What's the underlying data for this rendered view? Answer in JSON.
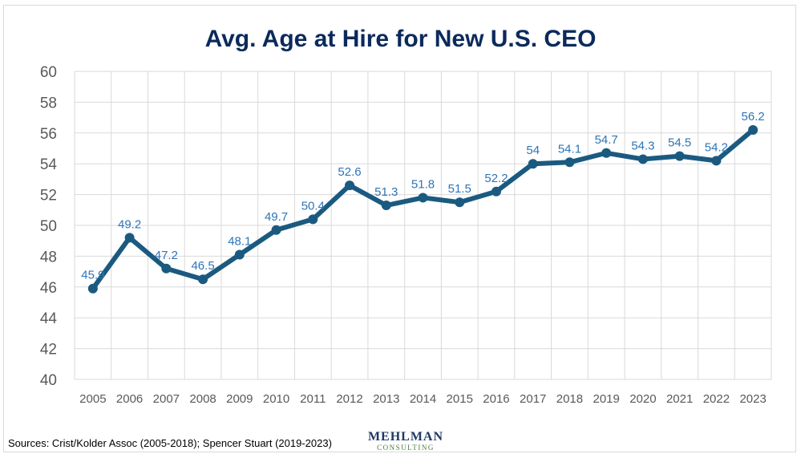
{
  "chart_data": {
    "type": "line",
    "title": "Avg. Age at Hire for New U.S. CEO",
    "xlabel": "",
    "ylabel": "",
    "x": [
      "2005",
      "2006",
      "2007",
      "2008",
      "2009",
      "2010",
      "2011",
      "2012",
      "2013",
      "2014",
      "2015",
      "2016",
      "2017",
      "2018",
      "2019",
      "2020",
      "2021",
      "2022",
      "2023"
    ],
    "series": [
      {
        "values": [
          45.9,
          49.2,
          47.2,
          46.5,
          48.1,
          49.7,
          50.4,
          52.6,
          51.3,
          51.8,
          51.5,
          52.2,
          54,
          54.1,
          54.7,
          54.3,
          54.5,
          54.2,
          56.2
        ],
        "labels": [
          "45.9",
          "49.2",
          "47.2",
          "46.5",
          "48.1",
          "49.7",
          "50.4",
          "52.6",
          "51.3",
          "51.8",
          "51.5",
          "52.2",
          "54",
          "54.1",
          "54.7",
          "54.3",
          "54.5",
          "54.2",
          "56.2"
        ]
      }
    ],
    "ylim": [
      40,
      60
    ],
    "yticks": [
      "40",
      "42",
      "44",
      "46",
      "48",
      "50",
      "52",
      "54",
      "56",
      "58",
      "60"
    ],
    "grid": true,
    "legend": "none",
    "colors": {
      "line": "#1b5a80",
      "label": "#2e75b6",
      "title": "#0b2a5c",
      "grid": "#d9d9d9",
      "axis_text": "#595959"
    }
  },
  "footer": {
    "source": "Sources: Crist/Kolder Assoc (2005-2018); Spencer Stuart (2019-2023)",
    "logo_main": "MEHLMAN",
    "logo_sub": "CONSULTING"
  }
}
